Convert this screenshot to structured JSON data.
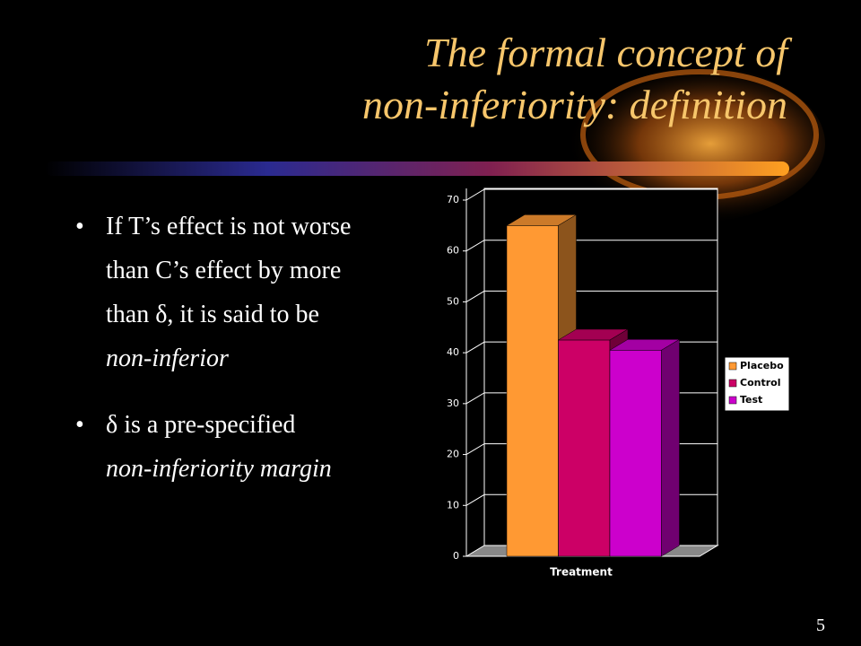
{
  "title": [
    "The formal concept of",
    "non-inferiority: definition"
  ],
  "bullets": [
    [
      {
        "text": "If T’s effect is not worse than C’s effect by more than δ, it is said to be ",
        "italic": false
      },
      {
        "text": "non-inferior",
        "italic": true
      }
    ],
    [
      {
        "text": "δ is a pre-specified ",
        "italic": false
      },
      {
        "text": "non-inferiority margin",
        "italic": true
      }
    ]
  ],
  "page_number": "5",
  "chart_data": {
    "type": "bar3d",
    "categories": [
      "Treatment"
    ],
    "series": [
      {
        "name": "Placebo",
        "color": "#ff9933",
        "values": [
          65
        ]
      },
      {
        "name": "Control",
        "color": "#cc0066",
        "values": [
          42.5
        ]
      },
      {
        "name": "Test",
        "color": "#cc00cc",
        "values": [
          40.5
        ]
      }
    ],
    "ylim": [
      0,
      70
    ],
    "yticks": [
      0,
      10,
      20,
      30,
      40,
      50,
      60,
      70
    ],
    "grid": true,
    "legend": "right"
  }
}
